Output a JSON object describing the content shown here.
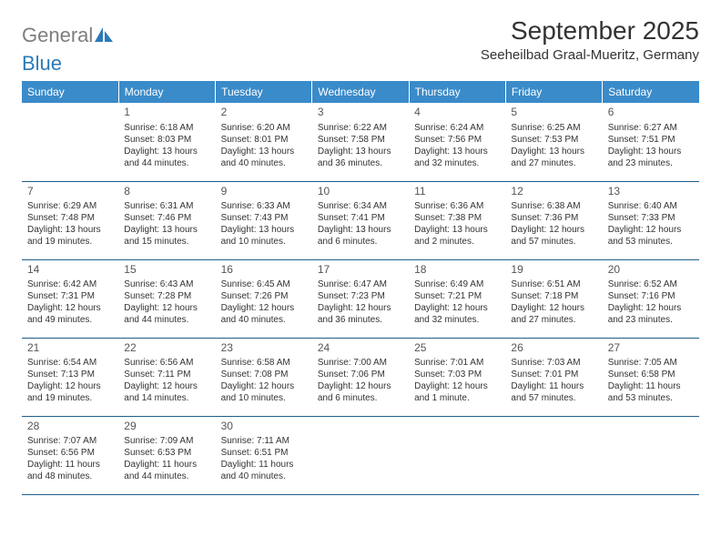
{
  "brand": {
    "general": "General",
    "blue": "Blue",
    "logo_fill": "#2a7ab8",
    "general_color": "#7e7e7e",
    "blue_color": "#2a7ab8"
  },
  "header": {
    "title": "September 2025",
    "location": "Seeheilbad Graal-Mueritz, Germany",
    "title_fontsize": 28,
    "location_fontsize": 15,
    "title_color": "#333333"
  },
  "calendar": {
    "type": "table",
    "header_bg": "#3a8bc9",
    "header_text_color": "#ffffff",
    "row_border_color": "#1f5f8b",
    "cell_text_color": "#333333",
    "daynum_color": "#555555",
    "header_fontsize": 12,
    "body_fontsize": 10,
    "daynum_fontsize": 12,
    "columns": [
      "Sunday",
      "Monday",
      "Tuesday",
      "Wednesday",
      "Thursday",
      "Friday",
      "Saturday"
    ],
    "weeks": [
      [
        null,
        {
          "n": "1",
          "sunrise": "Sunrise: 6:18 AM",
          "sunset": "Sunset: 8:03 PM",
          "day1": "Daylight: 13 hours",
          "day2": "and 44 minutes."
        },
        {
          "n": "2",
          "sunrise": "Sunrise: 6:20 AM",
          "sunset": "Sunset: 8:01 PM",
          "day1": "Daylight: 13 hours",
          "day2": "and 40 minutes."
        },
        {
          "n": "3",
          "sunrise": "Sunrise: 6:22 AM",
          "sunset": "Sunset: 7:58 PM",
          "day1": "Daylight: 13 hours",
          "day2": "and 36 minutes."
        },
        {
          "n": "4",
          "sunrise": "Sunrise: 6:24 AM",
          "sunset": "Sunset: 7:56 PM",
          "day1": "Daylight: 13 hours",
          "day2": "and 32 minutes."
        },
        {
          "n": "5",
          "sunrise": "Sunrise: 6:25 AM",
          "sunset": "Sunset: 7:53 PM",
          "day1": "Daylight: 13 hours",
          "day2": "and 27 minutes."
        },
        {
          "n": "6",
          "sunrise": "Sunrise: 6:27 AM",
          "sunset": "Sunset: 7:51 PM",
          "day1": "Daylight: 13 hours",
          "day2": "and 23 minutes."
        }
      ],
      [
        {
          "n": "7",
          "sunrise": "Sunrise: 6:29 AM",
          "sunset": "Sunset: 7:48 PM",
          "day1": "Daylight: 13 hours",
          "day2": "and 19 minutes."
        },
        {
          "n": "8",
          "sunrise": "Sunrise: 6:31 AM",
          "sunset": "Sunset: 7:46 PM",
          "day1": "Daylight: 13 hours",
          "day2": "and 15 minutes."
        },
        {
          "n": "9",
          "sunrise": "Sunrise: 6:33 AM",
          "sunset": "Sunset: 7:43 PM",
          "day1": "Daylight: 13 hours",
          "day2": "and 10 minutes."
        },
        {
          "n": "10",
          "sunrise": "Sunrise: 6:34 AM",
          "sunset": "Sunset: 7:41 PM",
          "day1": "Daylight: 13 hours",
          "day2": "and 6 minutes."
        },
        {
          "n": "11",
          "sunrise": "Sunrise: 6:36 AM",
          "sunset": "Sunset: 7:38 PM",
          "day1": "Daylight: 13 hours",
          "day2": "and 2 minutes."
        },
        {
          "n": "12",
          "sunrise": "Sunrise: 6:38 AM",
          "sunset": "Sunset: 7:36 PM",
          "day1": "Daylight: 12 hours",
          "day2": "and 57 minutes."
        },
        {
          "n": "13",
          "sunrise": "Sunrise: 6:40 AM",
          "sunset": "Sunset: 7:33 PM",
          "day1": "Daylight: 12 hours",
          "day2": "and 53 minutes."
        }
      ],
      [
        {
          "n": "14",
          "sunrise": "Sunrise: 6:42 AM",
          "sunset": "Sunset: 7:31 PM",
          "day1": "Daylight: 12 hours",
          "day2": "and 49 minutes."
        },
        {
          "n": "15",
          "sunrise": "Sunrise: 6:43 AM",
          "sunset": "Sunset: 7:28 PM",
          "day1": "Daylight: 12 hours",
          "day2": "and 44 minutes."
        },
        {
          "n": "16",
          "sunrise": "Sunrise: 6:45 AM",
          "sunset": "Sunset: 7:26 PM",
          "day1": "Daylight: 12 hours",
          "day2": "and 40 minutes."
        },
        {
          "n": "17",
          "sunrise": "Sunrise: 6:47 AM",
          "sunset": "Sunset: 7:23 PM",
          "day1": "Daylight: 12 hours",
          "day2": "and 36 minutes."
        },
        {
          "n": "18",
          "sunrise": "Sunrise: 6:49 AM",
          "sunset": "Sunset: 7:21 PM",
          "day1": "Daylight: 12 hours",
          "day2": "and 32 minutes."
        },
        {
          "n": "19",
          "sunrise": "Sunrise: 6:51 AM",
          "sunset": "Sunset: 7:18 PM",
          "day1": "Daylight: 12 hours",
          "day2": "and 27 minutes."
        },
        {
          "n": "20",
          "sunrise": "Sunrise: 6:52 AM",
          "sunset": "Sunset: 7:16 PM",
          "day1": "Daylight: 12 hours",
          "day2": "and 23 minutes."
        }
      ],
      [
        {
          "n": "21",
          "sunrise": "Sunrise: 6:54 AM",
          "sunset": "Sunset: 7:13 PM",
          "day1": "Daylight: 12 hours",
          "day2": "and 19 minutes."
        },
        {
          "n": "22",
          "sunrise": "Sunrise: 6:56 AM",
          "sunset": "Sunset: 7:11 PM",
          "day1": "Daylight: 12 hours",
          "day2": "and 14 minutes."
        },
        {
          "n": "23",
          "sunrise": "Sunrise: 6:58 AM",
          "sunset": "Sunset: 7:08 PM",
          "day1": "Daylight: 12 hours",
          "day2": "and 10 minutes."
        },
        {
          "n": "24",
          "sunrise": "Sunrise: 7:00 AM",
          "sunset": "Sunset: 7:06 PM",
          "day1": "Daylight: 12 hours",
          "day2": "and 6 minutes."
        },
        {
          "n": "25",
          "sunrise": "Sunrise: 7:01 AM",
          "sunset": "Sunset: 7:03 PM",
          "day1": "Daylight: 12 hours",
          "day2": "and 1 minute."
        },
        {
          "n": "26",
          "sunrise": "Sunrise: 7:03 AM",
          "sunset": "Sunset: 7:01 PM",
          "day1": "Daylight: 11 hours",
          "day2": "and 57 minutes."
        },
        {
          "n": "27",
          "sunrise": "Sunrise: 7:05 AM",
          "sunset": "Sunset: 6:58 PM",
          "day1": "Daylight: 11 hours",
          "day2": "and 53 minutes."
        }
      ],
      [
        {
          "n": "28",
          "sunrise": "Sunrise: 7:07 AM",
          "sunset": "Sunset: 6:56 PM",
          "day1": "Daylight: 11 hours",
          "day2": "and 48 minutes."
        },
        {
          "n": "29",
          "sunrise": "Sunrise: 7:09 AM",
          "sunset": "Sunset: 6:53 PM",
          "day1": "Daylight: 11 hours",
          "day2": "and 44 minutes."
        },
        {
          "n": "30",
          "sunrise": "Sunrise: 7:11 AM",
          "sunset": "Sunset: 6:51 PM",
          "day1": "Daylight: 11 hours",
          "day2": "and 40 minutes."
        },
        null,
        null,
        null,
        null
      ]
    ]
  }
}
